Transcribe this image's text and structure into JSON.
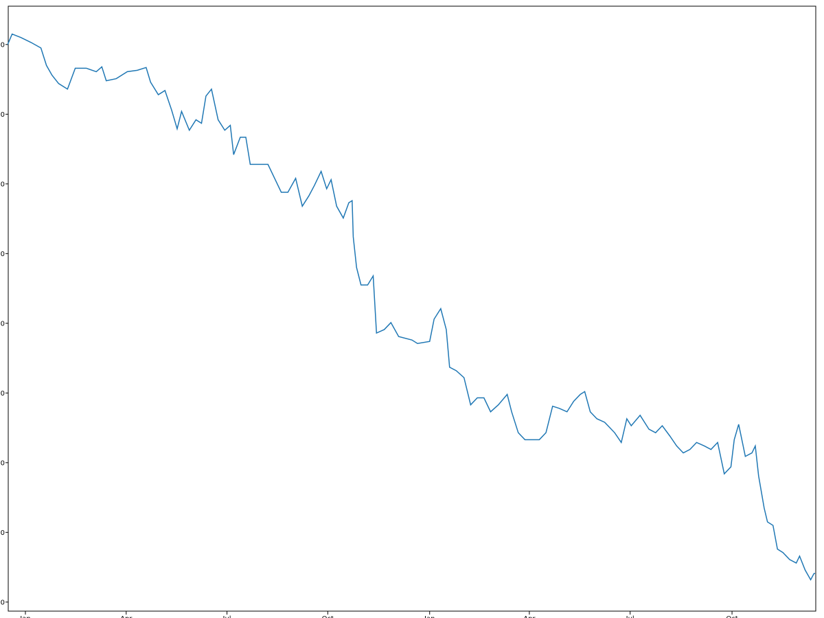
{
  "chart_data": {
    "type": "line",
    "x": [
      -16,
      -12,
      -4,
      5,
      14,
      19,
      24,
      30,
      38,
      45,
      55,
      64,
      69,
      73,
      82,
      92,
      101,
      109,
      113,
      120,
      126,
      132,
      137,
      141,
      148,
      154,
      159,
      163,
      168,
      174,
      180,
      185,
      188,
      194,
      199,
      203,
      210,
      219,
      225,
      231,
      237,
      244,
      250,
      256,
      261,
      267,
      272,
      276,
      281,
      287,
      292,
      295,
      296,
      299,
      303,
      309,
      314,
      317,
      324,
      330,
      337,
      349,
      354,
      365,
      369,
      375,
      380,
      383,
      389,
      396,
      402,
      408,
      414,
      420,
      427,
      435,
      439,
      445,
      451,
      458,
      464,
      470,
      476,
      482,
      489,
      495,
      501,
      505,
      510,
      516,
      523,
      532,
      538,
      543,
      547,
      555,
      563,
      569,
      575,
      582,
      588,
      594,
      600,
      606,
      613,
      619,
      625,
      631,
      637,
      640,
      644,
      650,
      656,
      659,
      662,
      667,
      670,
      675,
      679,
      684,
      690,
      696,
      699,
      704,
      709,
      712,
      713
    ],
    "series": [
      {
        "name": null,
        "color": "#1f77b4",
        "values": [
          90.0,
          91.5,
          91.0,
          90.3,
          89.5,
          87.0,
          85.6,
          84.4,
          83.6,
          86.6,
          86.6,
          86.1,
          86.8,
          84.8,
          85.1,
          86.1,
          86.3,
          86.7,
          84.6,
          82.8,
          83.4,
          80.6,
          77.9,
          80.4,
          77.7,
          79.2,
          78.7,
          82.6,
          83.6,
          79.2,
          77.7,
          78.4,
          74.2,
          76.7,
          76.7,
          72.8,
          72.8,
          72.8,
          70.8,
          68.8,
          68.8,
          70.8,
          66.8,
          68.3,
          69.8,
          71.8,
          69.3,
          70.6,
          66.8,
          65.1,
          67.3,
          67.6,
          62.4,
          58.0,
          55.5,
          55.5,
          56.8,
          48.6,
          49.1,
          50.1,
          48.1,
          47.6,
          47.1,
          47.4,
          50.6,
          52.1,
          49.1,
          43.7,
          43.2,
          42.2,
          38.3,
          39.3,
          39.3,
          37.3,
          38.3,
          39.8,
          37.3,
          34.3,
          33.3,
          33.3,
          33.3,
          34.3,
          38.1,
          37.8,
          37.3,
          38.8,
          39.8,
          40.2,
          37.3,
          36.3,
          35.8,
          34.3,
          32.9,
          36.3,
          35.3,
          36.8,
          34.8,
          34.3,
          35.3,
          33.8,
          32.4,
          31.4,
          31.9,
          32.9,
          32.4,
          31.9,
          32.9,
          28.4,
          29.4,
          33.3,
          35.5,
          30.9,
          31.4,
          32.4,
          28.1,
          23.5,
          21.5,
          21.0,
          17.6,
          17.1,
          16.1,
          15.6,
          16.6,
          14.6,
          13.2,
          14.1,
          14.1
        ]
      }
    ],
    "xlim": [
      -15.5,
      713.6
    ],
    "xticks": [
      {
        "value": 0,
        "label": "Jan"
      },
      {
        "value": 91,
        "label": "Apr"
      },
      {
        "value": 182,
        "label": "Jul"
      },
      {
        "value": 273,
        "label": "Oct"
      },
      {
        "value": 365,
        "label": "Jan"
      },
      {
        "value": 455,
        "label": "Apr"
      },
      {
        "value": 546,
        "label": "Jul"
      },
      {
        "value": 638,
        "label": "Oct"
      }
    ],
    "ylim": [
      8.7,
      95.5
    ],
    "yticks": [
      {
        "value": 90,
        "label": "0"
      },
      {
        "value": 80,
        "label": "0"
      },
      {
        "value": 70,
        "label": "0"
      },
      {
        "value": 60,
        "label": "0"
      },
      {
        "value": 50,
        "label": "0"
      },
      {
        "value": 40,
        "label": "0"
      },
      {
        "value": 30,
        "label": "0"
      },
      {
        "value": 20,
        "label": "0"
      },
      {
        "value": 10,
        "label": "0"
      }
    ]
  }
}
